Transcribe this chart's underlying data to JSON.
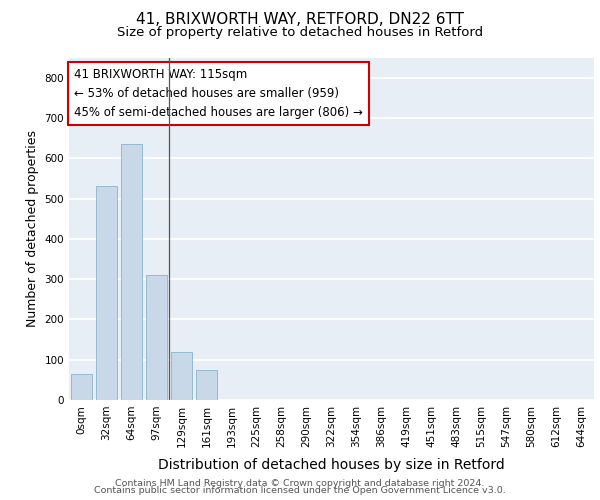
{
  "title1": "41, BRIXWORTH WAY, RETFORD, DN22 6TT",
  "title2": "Size of property relative to detached houses in Retford",
  "xlabel": "Distribution of detached houses by size in Retford",
  "ylabel": "Number of detached properties",
  "bar_labels": [
    "0sqm",
    "32sqm",
    "64sqm",
    "97sqm",
    "129sqm",
    "161sqm",
    "193sqm",
    "225sqm",
    "258sqm",
    "290sqm",
    "322sqm",
    "354sqm",
    "386sqm",
    "419sqm",
    "451sqm",
    "483sqm",
    "515sqm",
    "547sqm",
    "580sqm",
    "612sqm",
    "644sqm"
  ],
  "bar_values": [
    65,
    530,
    635,
    310,
    120,
    75,
    0,
    0,
    0,
    0,
    0,
    0,
    0,
    0,
    0,
    0,
    0,
    0,
    0,
    0,
    0
  ],
  "bar_color": "#c8d8e8",
  "bar_edge_color": "#8ab4cc",
  "bg_color": "#e8eef5",
  "grid_color": "#ffffff",
  "annotation_line1": "41 BRIXWORTH WAY: 115sqm",
  "annotation_line2": "← 53% of detached houses are smaller (959)",
  "annotation_line3": "45% of semi-detached houses are larger (806) →",
  "annotation_box_color": "#ffffff",
  "annotation_box_edge": "#cc0000",
  "ylim": [
    0,
    850
  ],
  "yticks": [
    0,
    100,
    200,
    300,
    400,
    500,
    600,
    700,
    800
  ],
  "footer_line1": "Contains HM Land Registry data © Crown copyright and database right 2024.",
  "footer_line2": "Contains public sector information licensed under the Open Government Licence v3.0.",
  "title1_fontsize": 11,
  "title2_fontsize": 9.5,
  "xlabel_fontsize": 10,
  "ylabel_fontsize": 9,
  "tick_fontsize": 7.5,
  "annotation_fontsize": 8.5,
  "footer_fontsize": 6.8
}
